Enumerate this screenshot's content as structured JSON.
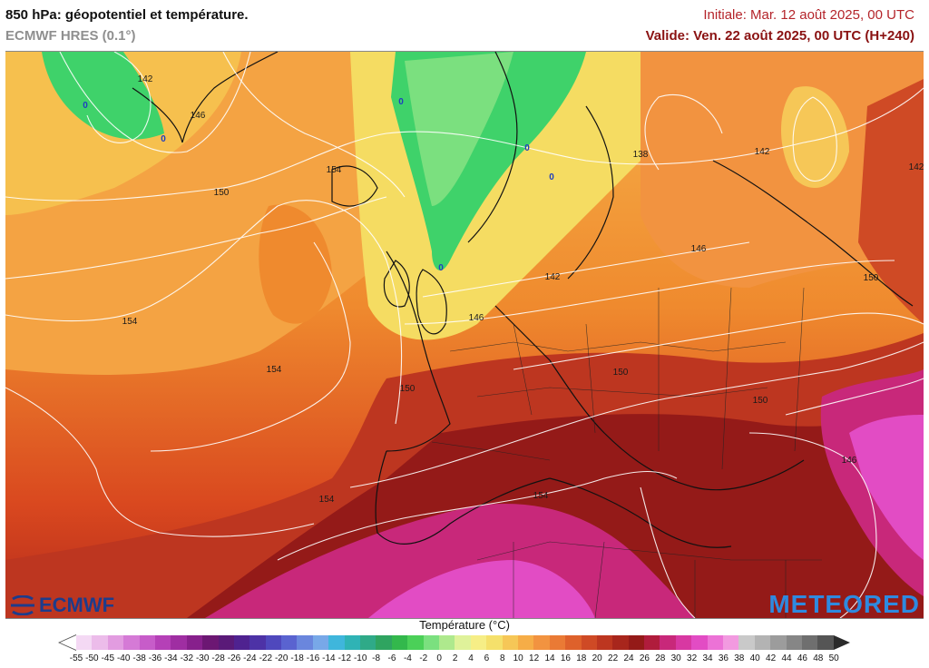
{
  "header": {
    "title": "850 hPa: géopotentiel et température.",
    "model": "ECMWF HRES (0.1°)",
    "initial": "Initiale: Mar. 12 août 2025, 00 UTC",
    "valid": "Valide: Ven. 22 août 2025, 00 UTC (H+240)"
  },
  "map": {
    "contour_labels": [
      "142",
      "146",
      "150",
      "154",
      "154",
      "154",
      "150",
      "146",
      "142",
      "138",
      "142",
      "146",
      "150",
      "150",
      "154",
      "146",
      "150",
      "154",
      "142"
    ],
    "zero_labels": [
      "0",
      "0",
      "0",
      "0",
      "0",
      "0"
    ],
    "colors": {
      "yellow": "#f5e36a",
      "light_orange": "#f7b24a",
      "orange": "#ef8a2e",
      "dark_orange": "#e2601f",
      "red": "#c8321e",
      "dark_red": "#8e1414",
      "magenta": "#c8287a",
      "pink": "#e24cc4",
      "green": "#3fd26a",
      "light_green": "#7be07f"
    }
  },
  "logos": {
    "left": "ECMWF",
    "right": "METEORED"
  },
  "legend": {
    "title": "Température (°C)",
    "ticks": [
      "-55",
      "-50",
      "-45",
      "-40",
      "-38",
      "-36",
      "-34",
      "-32",
      "-30",
      "-28",
      "-26",
      "-24",
      "-22",
      "-20",
      "-18",
      "-16",
      "-14",
      "-12",
      "-10",
      "-8",
      "-6",
      "-4",
      "-2",
      "0",
      "2",
      "4",
      "6",
      "8",
      "10",
      "12",
      "14",
      "16",
      "18",
      "20",
      "22",
      "24",
      "26",
      "28",
      "30",
      "32",
      "34",
      "36",
      "38",
      "40",
      "42",
      "44",
      "46",
      "48",
      "50"
    ],
    "swatches": [
      "#f4d9f4",
      "#ecbcea",
      "#e29ce0",
      "#d57ad6",
      "#c75cc9",
      "#b540b7",
      "#9f2ea2",
      "#87208c",
      "#6c1773",
      "#5a1a78",
      "#4f2290",
      "#4d32a6",
      "#4f48bd",
      "#5a63d0",
      "#6a86dd",
      "#78a8e8",
      "#3fb6dc",
      "#2fb3b5",
      "#2faa88",
      "#2fa460",
      "#33b84c",
      "#4bd058",
      "#7be07f",
      "#aee98d",
      "#dff29a",
      "#f6ee86",
      "#f5e06b",
      "#f6c757",
      "#f6ad47",
      "#f29340",
      "#ea7a35",
      "#de612b",
      "#cf4a25",
      "#bd3620",
      "#a8261c",
      "#941a18",
      "#b01c3c",
      "#c8287a",
      "#d838a2",
      "#e24cc4",
      "#ec72d6",
      "#f29ae0",
      "#c9c9c9",
      "#b3b3b3",
      "#9c9c9c",
      "#868686",
      "#6f6f6f",
      "#555555"
    ]
  }
}
